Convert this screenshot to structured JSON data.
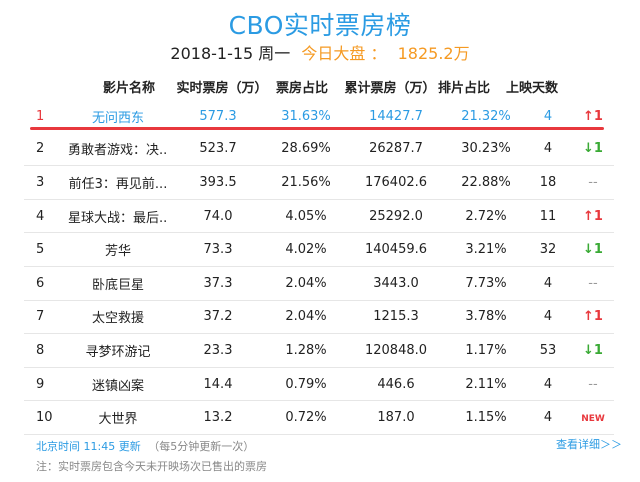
{
  "page": {
    "title": "CBO实时票房榜",
    "date": "2018-1-15 周一",
    "total_label": "今日大盘 ：",
    "total_value": "1825.2万"
  },
  "columns": [
    "影片名称",
    "实时票房（万）",
    "票房占比",
    "累计票房（万）",
    "排片占比",
    "上映天数"
  ],
  "rows": [
    {
      "rank": "1",
      "name": "无问西东",
      "gross": "577.3",
      "share": "31.63%",
      "total": "14427.7",
      "screen": "21.32%",
      "days": "4",
      "trend": "↑1",
      "trend_type": "up"
    },
    {
      "rank": "2",
      "name": "勇敢者游戏：决...",
      "gross": "523.7",
      "share": "28.69%",
      "total": "26287.7",
      "screen": "30.23%",
      "days": "4",
      "trend": "↓1",
      "trend_type": "down"
    },
    {
      "rank": "3",
      "name": "前任3：再见前...",
      "gross": "393.5",
      "share": "21.56%",
      "total": "176402.6",
      "screen": "22.88%",
      "days": "18",
      "trend": "--",
      "trend_type": "flat"
    },
    {
      "rank": "4",
      "name": "星球大战：最后...",
      "gross": "74.0",
      "share": "4.05%",
      "total": "25292.0",
      "screen": "2.72%",
      "days": "11",
      "trend": "↑1",
      "trend_type": "up"
    },
    {
      "rank": "5",
      "name": "芳华",
      "gross": "73.3",
      "share": "4.02%",
      "total": "140459.6",
      "screen": "3.21%",
      "days": "32",
      "trend": "↓1",
      "trend_type": "down"
    },
    {
      "rank": "6",
      "name": "卧底巨星",
      "gross": "37.3",
      "share": "2.04%",
      "total": "3443.0",
      "screen": "7.73%",
      "days": "4",
      "trend": "--",
      "trend_type": "flat"
    },
    {
      "rank": "7",
      "name": "太空救援",
      "gross": "37.2",
      "share": "2.04%",
      "total": "1215.3",
      "screen": "3.78%",
      "days": "4",
      "trend": "↑1",
      "trend_type": "up"
    },
    {
      "rank": "8",
      "name": "寻梦环游记",
      "gross": "23.3",
      "share": "1.28%",
      "total": "120848.0",
      "screen": "1.17%",
      "days": "53",
      "trend": "↓1",
      "trend_type": "down"
    },
    {
      "rank": "9",
      "name": "迷镇凶案",
      "gross": "14.4",
      "share": "0.79%",
      "total": "446.6",
      "screen": "2.11%",
      "days": "4",
      "trend": "--",
      "trend_type": "flat"
    },
    {
      "rank": "10",
      "name": "大世界",
      "gross": "13.2",
      "share": "0.72%",
      "total": "187.0",
      "screen": "1.15%",
      "days": "4",
      "trend": "NEW",
      "trend_type": "new"
    }
  ],
  "footer": {
    "update_time": "北京时间 11:45 更新",
    "update_note": "（每5分钟更新一次）",
    "note": "注：实时票房包含今天未开映场次已售出的票房",
    "more_link": "查看详细＞＞"
  },
  "colors": {
    "accent_blue": "#2b9be3",
    "orange": "#f59a23",
    "red": "#e8383d",
    "green": "#3aaa35"
  }
}
